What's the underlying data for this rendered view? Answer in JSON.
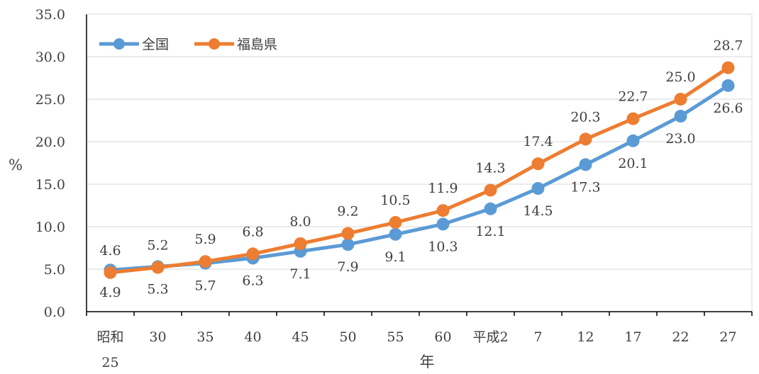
{
  "chart_data": {
    "type": "line",
    "categories": [
      "昭和\n25",
      "30",
      "35",
      "40",
      "45",
      "50",
      "55",
      "60",
      "平成2",
      "7",
      "12",
      "17",
      "22",
      "27"
    ],
    "series": [
      {
        "name": "全国",
        "color": "#5B9BD5",
        "values": [
          4.9,
          5.3,
          5.7,
          6.3,
          7.1,
          7.9,
          9.1,
          10.3,
          12.1,
          14.5,
          17.3,
          20.1,
          23.0,
          26.6
        ],
        "labels": [
          "4.9",
          "5.3",
          "5.7",
          "6.3",
          "7.1",
          "7.9",
          "9.1",
          "10.3",
          "12.1",
          "14.5",
          "17.3",
          "20.1",
          "23.0",
          "26.6"
        ]
      },
      {
        "name": "福島県",
        "color": "#ED7D31",
        "values": [
          4.6,
          5.2,
          5.9,
          6.8,
          8.0,
          9.2,
          10.5,
          11.9,
          14.3,
          17.4,
          20.3,
          22.7,
          25.0,
          28.7
        ],
        "labels": [
          "4.6",
          "5.2",
          "5.9",
          "6.8",
          "8.0",
          "9.2",
          "10.5",
          "11.9",
          "14.3",
          "17.4",
          "20.3",
          "22.7",
          "25.0",
          "28.7"
        ]
      }
    ],
    "xlabel": "年",
    "ylabel": "%",
    "ylim": [
      0,
      35
    ],
    "yticks": [
      "0.0",
      "5.0",
      "10.0",
      "15.0",
      "20.0",
      "25.0",
      "30.0",
      "35.0"
    ],
    "grid": "horizontal",
    "legend_position": "top-left"
  }
}
